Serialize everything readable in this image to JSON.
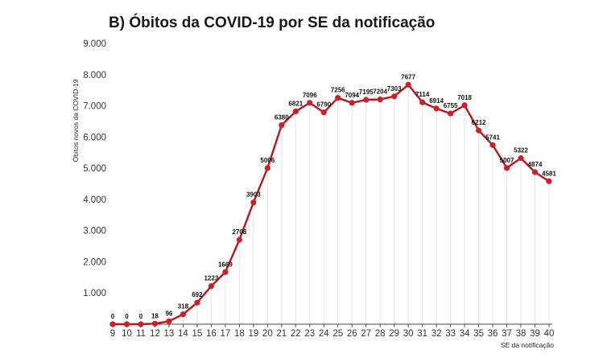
{
  "chart_data": {
    "type": "line",
    "title": "B) Óbitos da COVID-19 por SE da notificação",
    "xlabel": "SE da notificação",
    "ylabel": "Óbitos novos da COVID-19",
    "x": [
      9,
      10,
      11,
      12,
      13,
      14,
      15,
      16,
      17,
      18,
      19,
      20,
      21,
      22,
      23,
      24,
      25,
      26,
      27,
      28,
      29,
      30,
      31,
      32,
      33,
      34,
      35,
      36,
      37,
      38,
      39,
      40
    ],
    "values": [
      0,
      0,
      0,
      18,
      96,
      318,
      692,
      1223,
      1669,
      2708,
      3903,
      5006,
      6380,
      6821,
      7096,
      6790,
      7256,
      7094,
      7195,
      7204,
      7303,
      7677,
      7114,
      6914,
      6755,
      7018,
      6212,
      5741,
      5007,
      5322,
      4874,
      4581
    ],
    "ylim": [
      0,
      9000
    ],
    "yticks": [
      1000,
      2000,
      3000,
      4000,
      5000,
      6000,
      7000,
      8000,
      9000
    ],
    "ytick_labels": [
      "1.000",
      "2.000",
      "3.000",
      "4.000",
      "5.000",
      "6.000",
      "7.000",
      "8.000",
      "9.000"
    ],
    "grid": "vertical",
    "line_color": "#b5171e",
    "marker_color": "#cc1f27"
  }
}
